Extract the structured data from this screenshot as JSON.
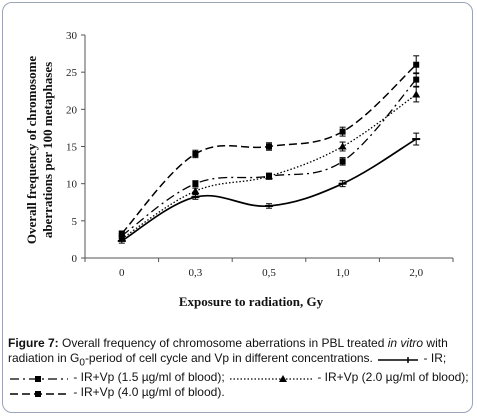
{
  "chart_data": {
    "type": "line",
    "title": "",
    "xlabel": "Exposure to radiation, Gy",
    "ylabel_lines": [
      "Overall frequency of chromosome",
      "aberrations per 100 metaphases"
    ],
    "categories": [
      "0",
      "0,3",
      "0,5",
      "1,0",
      "2,0"
    ],
    "ylim": [
      0,
      30
    ],
    "yticks": [
      "0",
      "5",
      "10",
      "15",
      "20",
      "25",
      "30"
    ],
    "grid": false,
    "legend": "caption",
    "series": [
      {
        "name": "IR",
        "values": [
          2.3,
          8.2,
          7.0,
          10.0,
          16.0
        ],
        "errors": [
          0.3,
          0.3,
          0.3,
          0.4,
          0.8
        ],
        "style": "solid",
        "marker": "dash",
        "color": "#000000"
      },
      {
        "name": "IR+Vp (1.5 µg/ml of blood)",
        "values": [
          3.0,
          10.0,
          11.0,
          13.0,
          24.0
        ],
        "errors": [
          0.3,
          0.4,
          0.4,
          0.5,
          0.9
        ],
        "style": "long-dash-dot",
        "marker": "square",
        "color": "#000000"
      },
      {
        "name": "IR+Vp (2.0 µg/ml of blood)",
        "values": [
          2.6,
          9.0,
          11.0,
          15.0,
          22.0
        ],
        "errors": [
          0.3,
          0.4,
          0.4,
          0.6,
          1.0
        ],
        "style": "dotted",
        "marker": "triangle",
        "color": "#000000"
      },
      {
        "name": "IR+Vp (4.0 µg/ml of blood)",
        "values": [
          3.3,
          14.0,
          15.0,
          17.0,
          26.0
        ],
        "errors": [
          0.3,
          0.5,
          0.5,
          0.6,
          1.2
        ],
        "style": "dash-dot",
        "marker": "square",
        "color": "#000000"
      }
    ]
  },
  "caption": {
    "label": "Figure 7:",
    "text_1": " Overall frequency of chromosome aberrations in PBL treated ",
    "italic_1": "in vitro",
    "text_2": " with radiation in G",
    "subscript": "0",
    "text_3": "-period of cell cycle and Vp in different concentrations. ",
    "legend_ir": " - IR; ",
    "legend_vp15": " - IR+Vp (1.5 µg/ml of blood); ",
    "legend_vp20": " - IR+Vp (2.0 µg/ml of blood); ",
    "legend_vp40": " - IR+Vp (4.0 µg/ml of blood)."
  }
}
